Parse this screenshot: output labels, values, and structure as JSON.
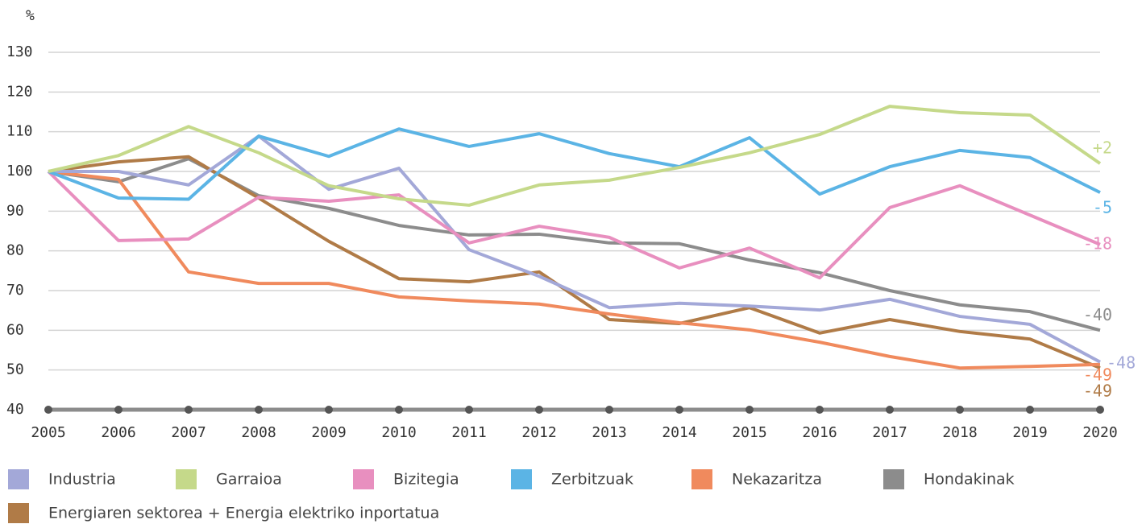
{
  "chart_data": {
    "type": "line",
    "y_unit_label": "%",
    "x": [
      2005,
      2006,
      2007,
      2008,
      2009,
      2010,
      2011,
      2012,
      2013,
      2014,
      2015,
      2016,
      2017,
      2018,
      2019,
      2020
    ],
    "xlim": [
      2005,
      2020
    ],
    "ylim": [
      40,
      130
    ],
    "yticks": [
      40,
      50,
      60,
      70,
      80,
      90,
      100,
      110,
      120,
      130
    ],
    "grid": true,
    "series": [
      {
        "name": "Industria",
        "color": "#a3a8d8",
        "values": [
          100,
          100,
          96.6,
          108.9,
          95.5,
          100.8,
          80.3,
          73.6,
          65.7,
          66.8,
          66.1,
          65.1,
          67.8,
          63.5,
          61.5,
          52
        ],
        "end_label": "-48"
      },
      {
        "name": "Garraioa",
        "color": "#c5d98a",
        "values": [
          100,
          104,
          111.3,
          104.7,
          96.4,
          93.1,
          91.5,
          96.6,
          97.8,
          101,
          104.7,
          109.3,
          116.4,
          114.8,
          114.2,
          102
        ],
        "end_label": "+2"
      },
      {
        "name": "Bizitegia",
        "color": "#e88fbf",
        "values": [
          100,
          82.6,
          83,
          93.5,
          92.5,
          94.1,
          82,
          86.2,
          83.4,
          75.7,
          80.7,
          73.2,
          90.9,
          96.4,
          89,
          81.6
        ],
        "end_label": "-18"
      },
      {
        "name": "Zerbitzuak",
        "color": "#5bb4e5",
        "values": [
          100,
          93.3,
          93,
          108.9,
          103.8,
          110.7,
          106.3,
          109.5,
          104.5,
          101.2,
          108.5,
          94.3,
          101.2,
          105.3,
          103.5,
          94.7
        ],
        "end_label": "-5"
      },
      {
        "name": "Nekazaritza",
        "color": "#f08a5d",
        "values": [
          100,
          98,
          74.7,
          71.8,
          71.8,
          68.4,
          67.4,
          66.6,
          64.1,
          61.9,
          60.1,
          57,
          53.4,
          50.5,
          50.9,
          51.4
        ],
        "end_label": "-49"
      },
      {
        "name": "Hondakinak",
        "color": "#8c8c8c",
        "values": [
          100,
          97.4,
          103.2,
          93.9,
          90.7,
          86.4,
          84,
          84.2,
          82,
          81.8,
          77.7,
          74.5,
          70,
          66.4,
          64.7,
          60
        ],
        "end_label": "-40"
      },
      {
        "name": "Energiaren sektorea + Energia elektriko inportatua",
        "color": "#b07b47",
        "values": [
          100,
          102.4,
          103.7,
          93.3,
          82.4,
          73,
          72.2,
          74.7,
          62.7,
          61.7,
          65.7,
          59.3,
          62.7,
          59.7,
          57.8,
          50.5
        ],
        "end_label": "-49"
      }
    ]
  }
}
